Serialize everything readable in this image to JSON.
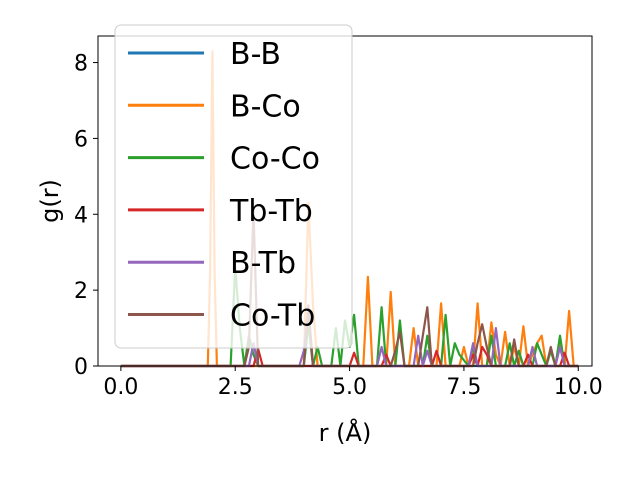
{
  "chart_data": {
    "type": "line",
    "xlabel": "r (Å)",
    "ylabel": "g(r)",
    "xlim": [
      -0.5,
      10.3
    ],
    "ylim": [
      0,
      8.7
    ],
    "xticks": [
      0.0,
      2.5,
      5.0,
      7.5,
      10.0
    ],
    "xtick_labels": [
      "0.0",
      "2.5",
      "5.0",
      "7.5",
      "10.0"
    ],
    "yticks": [
      0,
      2,
      4,
      6,
      8
    ],
    "ytick_labels": [
      "0",
      "2",
      "4",
      "6",
      "8"
    ],
    "grid": false,
    "legend_position": "upper-left",
    "series": [
      {
        "name": "B-B",
        "color": "#1f77b4",
        "x": [
          0,
          1.8,
          1.9,
          2.0,
          2.1,
          2.2,
          10.0
        ],
        "y": [
          0,
          0,
          0,
          0,
          0,
          0,
          0
        ]
      },
      {
        "name": "B-Co",
        "color": "#ff7f0e",
        "x": [
          0,
          1.9,
          1.95,
          2.0,
          2.05,
          2.1,
          4.0,
          4.1,
          4.2,
          4.3,
          5.3,
          5.4,
          5.5,
          5.8,
          5.9,
          6.0,
          6.3,
          6.4,
          6.5,
          6.9,
          7.0,
          7.1,
          7.4,
          7.5,
          7.6,
          7.7,
          7.8,
          7.9,
          8.0,
          8.1,
          8.2,
          8.3,
          8.4,
          8.5,
          8.6,
          8.7,
          8.8,
          8.9,
          9.0,
          9.1,
          9.2,
          9.3,
          9.5,
          9.6,
          9.7,
          9.8,
          9.9,
          10.0
        ],
        "y": [
          0,
          0,
          2.5,
          8.3,
          2.5,
          0,
          0,
          4.3,
          1.6,
          0,
          0,
          2.35,
          0,
          0,
          1.95,
          0,
          0,
          1.0,
          0,
          0,
          1.65,
          0,
          0,
          0.5,
          0,
          0,
          1.65,
          0,
          0,
          1.15,
          0.3,
          0,
          0.9,
          0,
          0.5,
          0,
          1.05,
          0,
          0.3,
          0.6,
          0.8,
          0,
          0,
          0.6,
          0,
          1.45,
          0,
          0
        ]
      },
      {
        "name": "Co-Co",
        "color": "#2ca02c",
        "x": [
          0,
          2.4,
          2.5,
          2.6,
          2.7,
          2.8,
          2.9,
          3.0,
          4.0,
          4.1,
          4.2,
          4.3,
          4.4,
          4.6,
          4.7,
          4.8,
          4.9,
          5.0,
          5.1,
          5.2,
          5.3,
          5.6,
          5.7,
          5.8,
          6.0,
          6.1,
          6.2,
          6.6,
          6.7,
          6.8,
          7.0,
          7.1,
          7.2,
          7.3,
          7.4,
          7.6,
          7.7,
          7.8,
          8.0,
          8.1,
          8.2,
          8.4,
          8.5,
          8.6,
          8.7,
          8.8,
          9.0,
          9.1,
          9.2,
          9.3,
          9.4,
          9.5,
          9.6,
          9.7,
          10.0
        ],
        "y": [
          0,
          0,
          2.6,
          1.0,
          0,
          0.8,
          0.3,
          0,
          0,
          1.1,
          0,
          0.5,
          0,
          0,
          1.0,
          0,
          1.2,
          0.5,
          1.35,
          0,
          0,
          0,
          1.55,
          0,
          0,
          1.2,
          0,
          0,
          0.8,
          0,
          0,
          1.35,
          0,
          0.6,
          0.3,
          0,
          0.5,
          0,
          0,
          0.8,
          0,
          0,
          0.6,
          0,
          0.4,
          0,
          0,
          0.6,
          0.3,
          0,
          0.4,
          0,
          0.8,
          0,
          0
        ]
      },
      {
        "name": "Tb-Tb",
        "color": "#d62728",
        "x": [
          0,
          2.9,
          3.0,
          3.1,
          3.2,
          5.0,
          5.1,
          5.2,
          5.7,
          5.8,
          5.9,
          6.8,
          6.9,
          7.0,
          7.6,
          7.7,
          7.8,
          7.9,
          8.0,
          8.1,
          8.8,
          8.9,
          9.0,
          9.6,
          9.7,
          9.8,
          10.0
        ],
        "y": [
          0,
          0,
          0.45,
          0,
          0,
          0,
          0.35,
          0,
          0,
          0.3,
          0,
          0,
          0.4,
          0,
          0,
          0.3,
          0,
          0.5,
          0.3,
          0,
          0,
          0.3,
          0,
          0,
          0.35,
          0,
          0
        ]
      },
      {
        "name": "B-Tb",
        "color": "#9467bd",
        "x": [
          0,
          2.8,
          2.9,
          3.0,
          3.9,
          4.0,
          4.1,
          4.2,
          5.6,
          5.7,
          5.8,
          6.4,
          6.5,
          6.6,
          6.7,
          6.8,
          7.6,
          7.7,
          7.8,
          8.1,
          8.2,
          8.3,
          8.9,
          9.0,
          9.1,
          9.5,
          9.6,
          9.7,
          10.0
        ],
        "y": [
          0,
          0,
          0.6,
          0,
          0,
          0.4,
          1.5,
          0,
          0,
          0.5,
          0,
          0,
          0.8,
          0,
          0.4,
          0,
          0,
          0.6,
          0,
          0,
          1.0,
          0,
          0,
          0.5,
          0,
          0,
          0.5,
          0,
          0
        ]
      },
      {
        "name": "Co-Tb",
        "color": "#8c564b",
        "x": [
          0,
          2.7,
          2.8,
          2.9,
          3.0,
          4.0,
          4.1,
          4.2,
          5.9,
          6.0,
          6.1,
          6.2,
          6.5,
          6.6,
          6.7,
          6.8,
          7.7,
          7.8,
          7.9,
          8.0,
          8.1,
          8.5,
          8.6,
          8.7,
          9.3,
          9.4,
          9.5,
          10.0
        ],
        "y": [
          0,
          0,
          0.5,
          4.1,
          0,
          0,
          1.6,
          0,
          0,
          0.4,
          0.9,
          0,
          0,
          0.8,
          1.55,
          0,
          0,
          0.6,
          1.1,
          0.5,
          0,
          0,
          0.7,
          0,
          0,
          0.5,
          0,
          0
        ]
      }
    ]
  }
}
